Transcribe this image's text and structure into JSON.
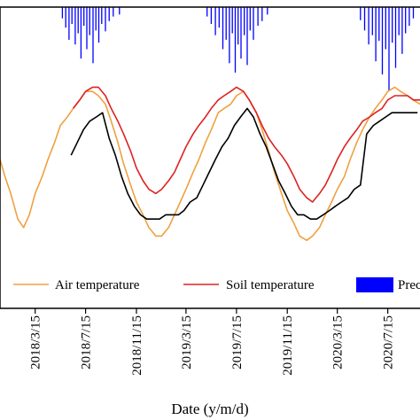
{
  "chart_data": {
    "type": "line",
    "xlabel": "Date (y/m/d)",
    "x_tick_labels": [
      "2018/3/15",
      "2018/7/15",
      "2018/11/15",
      "2019/3/15",
      "2019/7/15",
      "2019/11/15",
      "2020/3/15",
      "2020/7/15"
    ],
    "x_ticks": [
      "2018-03-15",
      "2018-07-15",
      "2018-11-15",
      "2019-03-15",
      "2019-07-15",
      "2019-11-15",
      "2020-03-15",
      "2020-07-15"
    ],
    "x_range": [
      "2017-12-20",
      "2020-10-01"
    ],
    "y_range_temperature": [
      -15,
      35
    ],
    "grid": false,
    "legend_position": "bottom",
    "legend": [
      {
        "label": "Air temperature",
        "color": "#f0a040",
        "kind": "line"
      },
      {
        "label": "Soil temperature",
        "color": "#dd2222",
        "kind": "line"
      },
      {
        "label": "Prec",
        "color": "#0000ff",
        "kind": "bar"
      }
    ],
    "series": [
      {
        "name": "Soil temperature",
        "color": "#dd2222",
        "x": [
          "2018-06-15",
          "2018-07-01",
          "2018-07-15",
          "2018-08-01",
          "2018-08-15",
          "2018-09-01",
          "2018-09-15",
          "2018-10-01",
          "2018-10-15",
          "2018-11-01",
          "2018-11-15",
          "2018-12-01",
          "2018-12-15",
          "2019-01-01",
          "2019-01-15",
          "2019-02-01",
          "2019-02-15",
          "2019-03-01",
          "2019-03-15",
          "2019-04-01",
          "2019-04-15",
          "2019-05-01",
          "2019-05-15",
          "2019-06-01",
          "2019-06-15",
          "2019-07-01",
          "2019-07-15",
          "2019-08-01",
          "2019-08-15",
          "2019-09-01",
          "2019-09-15",
          "2019-10-01",
          "2019-10-15",
          "2019-11-01",
          "2019-11-15",
          "2019-12-01",
          "2019-12-15",
          "2020-01-01",
          "2020-01-15",
          "2020-02-01",
          "2020-02-15",
          "2020-03-01",
          "2020-03-15",
          "2020-04-01",
          "2020-04-15",
          "2020-05-01",
          "2020-05-15",
          "2020-06-01",
          "2020-06-15",
          "2020-07-01",
          "2020-07-15",
          "2020-08-01",
          "2020-08-15",
          "2020-09-01",
          "2020-09-15",
          "2020-10-01"
        ],
        "y": [
          22,
          24,
          26,
          27,
          27,
          25,
          22,
          19,
          16,
          12,
          8,
          5,
          3,
          2,
          3,
          5,
          7,
          10,
          13,
          16,
          18,
          20,
          22,
          24,
          25,
          26,
          27,
          26,
          24,
          21,
          18,
          15,
          13,
          11,
          9,
          6,
          3,
          1,
          0,
          2,
          4,
          7,
          10,
          13,
          15,
          17,
          19,
          20,
          21,
          22,
          24,
          25,
          25,
          25,
          24,
          24
        ]
      },
      {
        "name": "Air temperature",
        "color": "#f0a040",
        "x": [
          "2017-12-20",
          "2018-01-01",
          "2018-01-15",
          "2018-02-01",
          "2018-02-15",
          "2018-03-01",
          "2018-03-15",
          "2018-04-01",
          "2018-04-15",
          "2018-05-01",
          "2018-05-15",
          "2018-06-01",
          "2018-06-15",
          "2018-07-01",
          "2018-07-15",
          "2018-08-01",
          "2018-08-15",
          "2018-09-01",
          "2018-09-15",
          "2018-10-01",
          "2018-10-15",
          "2018-11-01",
          "2018-11-15",
          "2018-12-01",
          "2018-12-15",
          "2019-01-01",
          "2019-01-15",
          "2019-02-01",
          "2019-02-15",
          "2019-03-01",
          "2019-03-15",
          "2019-04-01",
          "2019-04-15",
          "2019-05-01",
          "2019-05-15",
          "2019-06-01",
          "2019-06-15",
          "2019-07-01",
          "2019-07-15",
          "2019-08-01",
          "2019-08-15",
          "2019-09-01",
          "2019-09-15",
          "2019-10-01",
          "2019-10-15",
          "2019-11-01",
          "2019-11-15",
          "2019-12-01",
          "2019-12-15",
          "2020-01-01",
          "2020-01-15",
          "2020-02-01",
          "2020-02-15",
          "2020-03-01",
          "2020-03-15",
          "2020-04-01",
          "2020-04-15",
          "2020-05-01",
          "2020-05-15",
          "2020-06-01",
          "2020-06-15",
          "2020-07-01",
          "2020-07-15",
          "2020-08-01",
          "2020-08-15",
          "2020-09-01",
          "2020-09-15",
          "2020-10-01"
        ],
        "y": [
          10,
          6,
          2,
          -4,
          -6,
          -3,
          2,
          6,
          10,
          14,
          18,
          20,
          22,
          24,
          26,
          26,
          25,
          23,
          19,
          14,
          9,
          4,
          0,
          -3,
          -6,
          -8,
          -8,
          -6,
          -3,
          0,
          3,
          7,
          10,
          14,
          17,
          21,
          22,
          23,
          25,
          26,
          24,
          21,
          17,
          12,
          7,
          2,
          -2,
          -5,
          -8,
          -9,
          -8,
          -6,
          -3,
          0,
          3,
          6,
          10,
          14,
          17,
          20,
          22,
          24,
          26,
          27,
          26,
          25,
          24,
          23
        ]
      },
      {
        "name": "",
        "color": "#000000",
        "x": [
          "2018-06-10",
          "2018-06-25",
          "2018-07-10",
          "2018-07-25",
          "2018-08-10",
          "2018-08-25",
          "2018-09-10",
          "2018-09-25",
          "2018-10-10",
          "2018-10-25",
          "2018-11-10",
          "2018-11-25",
          "2018-12-10",
          "2018-12-25",
          "2019-01-10",
          "2019-01-25",
          "2019-02-10",
          "2019-02-25",
          "2019-03-10",
          "2019-03-25",
          "2019-04-10",
          "2019-04-25",
          "2019-05-10",
          "2019-05-25",
          "2019-06-10",
          "2019-06-25",
          "2019-07-10",
          "2019-07-25",
          "2019-08-10",
          "2019-08-25",
          "2019-09-10",
          "2019-09-25",
          "2019-10-10",
          "2019-10-25",
          "2019-11-10",
          "2019-11-25",
          "2019-12-10",
          "2019-12-25",
          "2020-01-10",
          "2020-01-25",
          "2020-02-10",
          "2020-02-25",
          "2020-03-10",
          "2020-03-25",
          "2020-04-10",
          "2020-04-25",
          "2020-05-10",
          "2020-05-25",
          "2020-06-10",
          "2020-06-25",
          "2020-07-10",
          "2020-07-25",
          "2020-08-10",
          "2020-08-25",
          "2020-09-10",
          "2020-09-25"
        ],
        "y": [
          11,
          14,
          17,
          19,
          20,
          21,
          15,
          11,
          6,
          2,
          -1,
          -3,
          -4,
          -4,
          -4,
          -3,
          -3,
          -3,
          -2,
          0,
          1,
          4,
          7,
          10,
          13,
          15,
          18,
          20,
          22,
          20,
          16,
          13,
          9,
          5,
          2,
          -1,
          -3,
          -3,
          -4,
          -4,
          -3,
          -2,
          -1,
          0,
          1,
          3,
          4,
          16,
          18,
          19,
          20,
          21,
          21,
          21,
          21,
          21
        ]
      }
    ],
    "precipitation": {
      "name": "Prec",
      "color": "#0000ff",
      "x": [
        "2018-05-20",
        "2018-05-28",
        "2018-06-05",
        "2018-06-12",
        "2018-06-20",
        "2018-06-27",
        "2018-07-04",
        "2018-07-11",
        "2018-07-18",
        "2018-07-25",
        "2018-08-02",
        "2018-08-09",
        "2018-08-16",
        "2018-08-23",
        "2018-09-01",
        "2018-09-10",
        "2018-09-20",
        "2018-10-05",
        "2019-05-05",
        "2019-05-15",
        "2019-05-25",
        "2019-06-03",
        "2019-06-12",
        "2019-06-20",
        "2019-06-28",
        "2019-07-05",
        "2019-07-12",
        "2019-07-19",
        "2019-07-26",
        "2019-08-03",
        "2019-08-10",
        "2019-08-17",
        "2019-08-25",
        "2019-09-05",
        "2019-09-15",
        "2019-09-28",
        "2020-05-10",
        "2020-05-20",
        "2020-05-30",
        "2020-06-08",
        "2020-06-16",
        "2020-06-24",
        "2020-07-02",
        "2020-07-10",
        "2020-07-18",
        "2020-07-26",
        "2020-08-03",
        "2020-08-11",
        "2020-08-19",
        "2020-08-27",
        "2020-09-05",
        "2020-09-15"
      ],
      "values": [
        12,
        22,
        35,
        18,
        40,
        28,
        55,
        20,
        45,
        30,
        60,
        25,
        38,
        18,
        26,
        15,
        10,
        8,
        10,
        18,
        30,
        22,
        45,
        35,
        60,
        28,
        70,
        40,
        55,
        30,
        62,
        25,
        35,
        20,
        15,
        8,
        14,
        25,
        40,
        30,
        58,
        36,
        72,
        45,
        90,
        38,
        65,
        30,
        50,
        28,
        20,
        12
      ],
      "axis": "inverted, top"
    }
  }
}
